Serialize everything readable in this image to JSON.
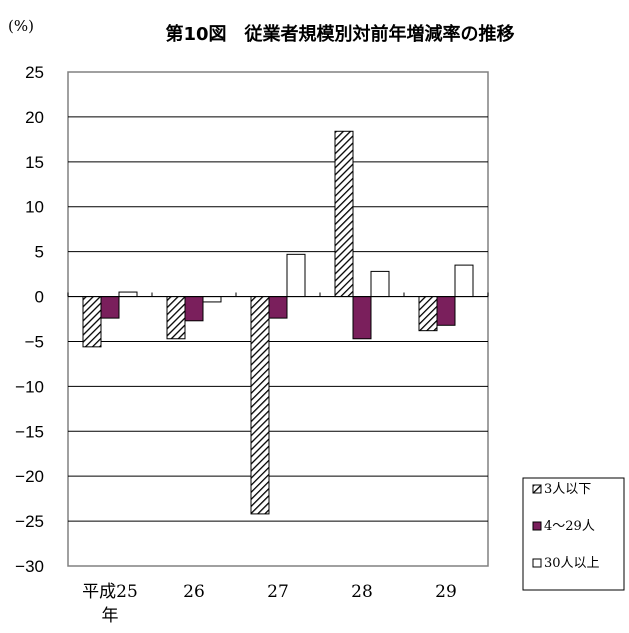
{
  "chart_data": {
    "type": "bar",
    "title": "第10図　従業者規模別対前年増減率の推移",
    "unit_label": "(%)",
    "categories": [
      "平成25年",
      "26",
      "27",
      "28",
      "29"
    ],
    "category_lines": [
      [
        "平成25",
        "年"
      ],
      [
        "26"
      ],
      [
        "27"
      ],
      [
        "28"
      ],
      [
        "29"
      ]
    ],
    "series": [
      {
        "name": "3人以下",
        "values": [
          -5.6,
          -4.7,
          -24.2,
          18.4,
          -3.8
        ],
        "fill": "hatch"
      },
      {
        "name": "4～29人",
        "values": [
          -2.4,
          -2.7,
          -2.4,
          -4.7,
          -3.2
        ],
        "fill": "#7a1f5c"
      },
      {
        "name": "30人以上",
        "values": [
          0.5,
          -0.6,
          4.7,
          2.8,
          3.5
        ],
        "fill": "#ffffff"
      }
    ],
    "ylim": [
      -30,
      25
    ],
    "yticks": [
      25,
      20,
      15,
      10,
      5,
      0,
      -5,
      -10,
      -15,
      -20,
      -25,
      -30
    ],
    "grid": true,
    "legend": "bottom-right"
  }
}
